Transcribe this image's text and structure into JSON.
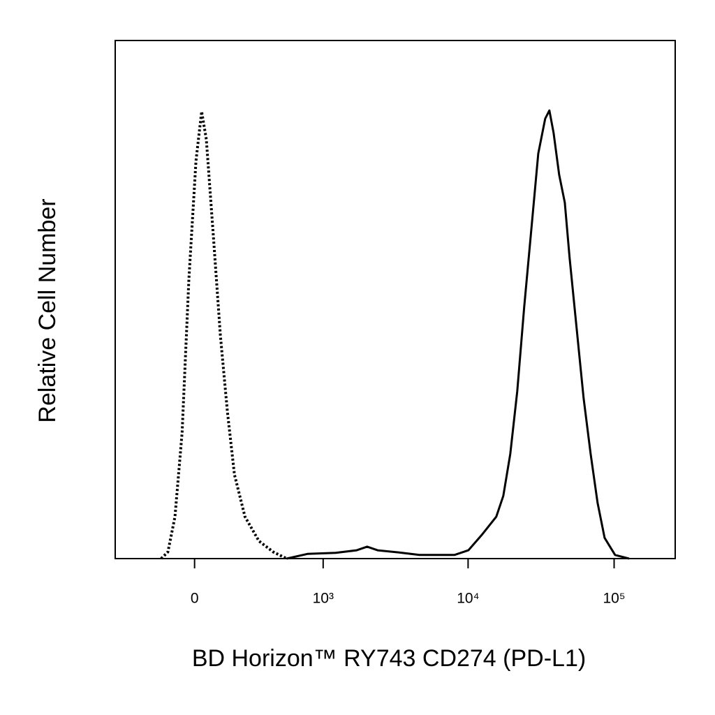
{
  "chart_data": {
    "type": "line",
    "x_label": "BD Horizon™ RY743  CD274 (PD-L1)",
    "y_label": "Relative Cell Number",
    "xscale": "asinh",
    "xscale_cofactor": 268,
    "xlim": [
      -430,
      262000
    ],
    "ylim": [
      0,
      100
    ],
    "xticks": [
      0,
      {
        "value": 1000,
        "label": "10³"
      },
      {
        "value": 10000,
        "label": "10⁴"
      },
      {
        "value": 100000,
        "label": "10⁵"
      }
    ],
    "series": [
      {
        "color": "#000000",
        "style": "dotted",
        "x": [
          -148,
          -116,
          -84,
          -53,
          -24,
          6,
          30,
          50,
          81,
          112,
          145,
          180,
          236,
          321,
          424,
          541
        ],
        "values": [
          0,
          1.3,
          8.1,
          24.3,
          53.9,
          76.8,
          86.3,
          80.9,
          62.0,
          43.1,
          28.3,
          16.2,
          8.1,
          3.4,
          1.3,
          0
        ]
      },
      {
        "color": "#000000",
        "style": "solid",
        "x": [
          541,
          772,
          1225,
          1716,
          2026,
          2393,
          3334,
          4644,
          8059,
          10050,
          12516,
          15598,
          17420,
          19457,
          21708,
          24227,
          27068,
          30230,
          33741,
          36046,
          38512,
          42049,
          45935,
          49607,
          55369,
          61828,
          69037,
          77050,
          86082,
          101545,
          126603
        ],
        "values": [
          0,
          0.9,
          1.1,
          1.6,
          2.3,
          1.6,
          1.2,
          0.7,
          0.7,
          1.6,
          4.7,
          8.1,
          12.1,
          20.2,
          32.3,
          48.5,
          63.3,
          78.2,
          84.9,
          86.5,
          82.2,
          74.1,
          68.7,
          58.0,
          44.5,
          31.0,
          20.2,
          10.8,
          4.0,
          0.7,
          0
        ]
      }
    ]
  }
}
